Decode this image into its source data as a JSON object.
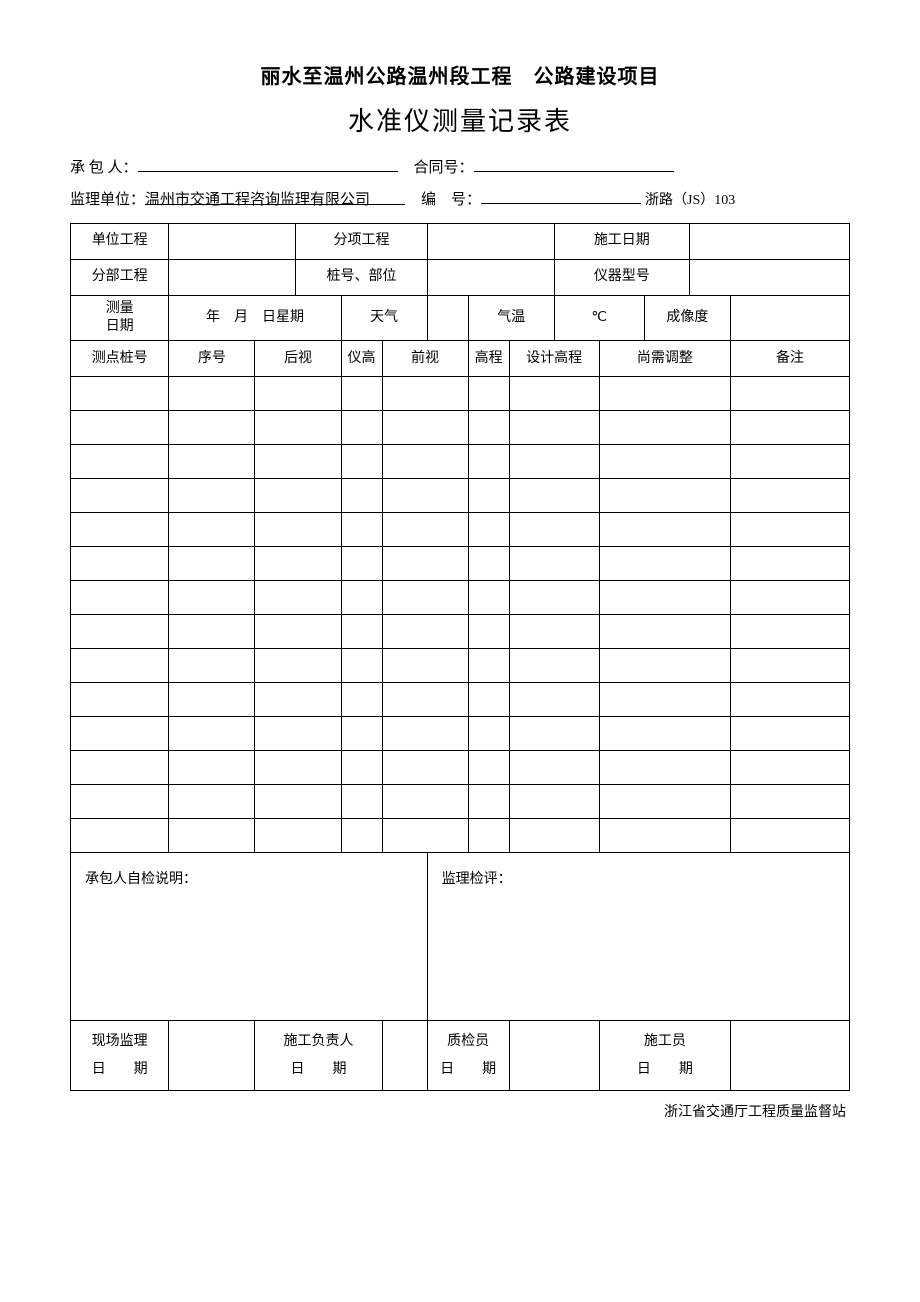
{
  "header": {
    "title1": "丽水至温州公路温州段工程　公路建设项目",
    "title2": "水准仪测量记录表",
    "contractor_label": "承 包 人：",
    "contractor_value": "",
    "contract_no_label": "合同号：",
    "contract_no_value": "",
    "supervisor_label": "监理单位：",
    "supervisor_value": "温州市交通工程咨询监理有限公司",
    "serial_label": "编　号：",
    "serial_value": "",
    "form_code": "浙路（JS）103"
  },
  "labels": {
    "unit_project": "单位工程",
    "sub_item": "分项工程",
    "construction_date": "施工日期",
    "section": "分部工程",
    "pile_part": "桩号、部位",
    "instrument": "仪器型号",
    "measure_date_l1": "测量",
    "measure_date_l2": "日期",
    "ymd": "年　月　日星期",
    "weather": "天气",
    "temperature": "气温",
    "celsius": "℃",
    "imaging": "成像度",
    "col_point": "测点桩号",
    "col_no": "序号",
    "col_back": "后视",
    "col_inst_h": "仪高",
    "col_fore": "前视",
    "col_elev": "高程",
    "col_design": "设计高程",
    "col_adjust": "尚需调整",
    "col_remark": "备注",
    "self_check": "承包人自检说明：",
    "supervisor_eval": "监理检评：",
    "site_supervisor": "现场监理",
    "construction_head": "施工负责人",
    "qc": "质检员",
    "worker": "施工员",
    "date": "日　　期"
  },
  "footer": "浙江省交通厅工程质量监督站",
  "style": {
    "page_bg": "#ffffff",
    "text_color": "#000000",
    "border_color": "#000000",
    "title1_fontsize": 20,
    "title2_fontsize": 26,
    "body_fontsize": 14,
    "data_row_count": 14
  }
}
